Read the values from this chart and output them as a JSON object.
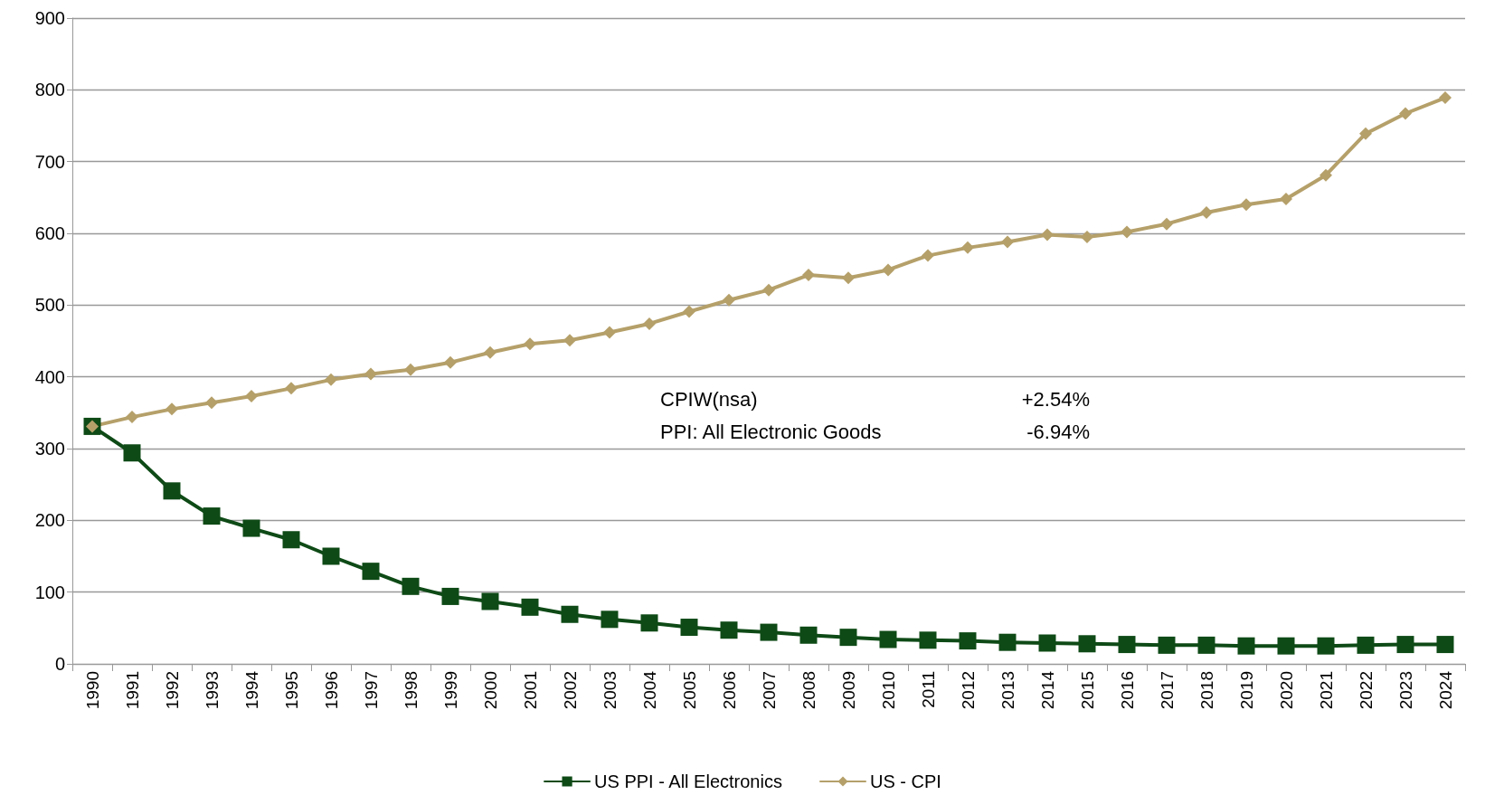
{
  "chart_data": {
    "type": "line",
    "categories": [
      "1990",
      "1991",
      "1992",
      "1993",
      "1994",
      "1995",
      "1996",
      "1997",
      "1998",
      "1999",
      "2000",
      "2001",
      "2002",
      "2003",
      "2004",
      "2005",
      "2006",
      "2007",
      "2008",
      "2009",
      "2010",
      "2011",
      "2012",
      "2013",
      "2014",
      "2015",
      "2016",
      "2017",
      "2018",
      "2019",
      "2020",
      "2021",
      "2022",
      "2023",
      "2024"
    ],
    "series": [
      {
        "name": "US PPI - All Electronics",
        "color": "#0e4a16",
        "marker": "square",
        "values": [
          331,
          294,
          241,
          206,
          189,
          173,
          150,
          129,
          108,
          94,
          87,
          79,
          69,
          62,
          57,
          51,
          47,
          44,
          40,
          37,
          34,
          33,
          32,
          30,
          29,
          28,
          27,
          26,
          26,
          25,
          25,
          25,
          26,
          27,
          27
        ]
      },
      {
        "name": "US - CPI",
        "color": "#b5a06a",
        "marker": "diamond",
        "values": [
          331,
          344,
          355,
          364,
          373,
          384,
          396,
          404,
          410,
          420,
          434,
          446,
          451,
          462,
          474,
          491,
          507,
          521,
          542,
          538,
          549,
          569,
          580,
          588,
          598,
          595,
          602,
          613,
          629,
          640,
          648,
          681,
          739,
          767,
          789
        ]
      }
    ],
    "ylim": [
      0,
      900
    ],
    "yticks": [
      0,
      100,
      200,
      300,
      400,
      500,
      600,
      700,
      800,
      900
    ],
    "grid": "y",
    "legend": "bottom",
    "line_style": "solid",
    "annotations": [
      "CPIW(nsa)",
      "+2.54%",
      "PPI: All Electronic Goods",
      "-6.94%"
    ]
  }
}
